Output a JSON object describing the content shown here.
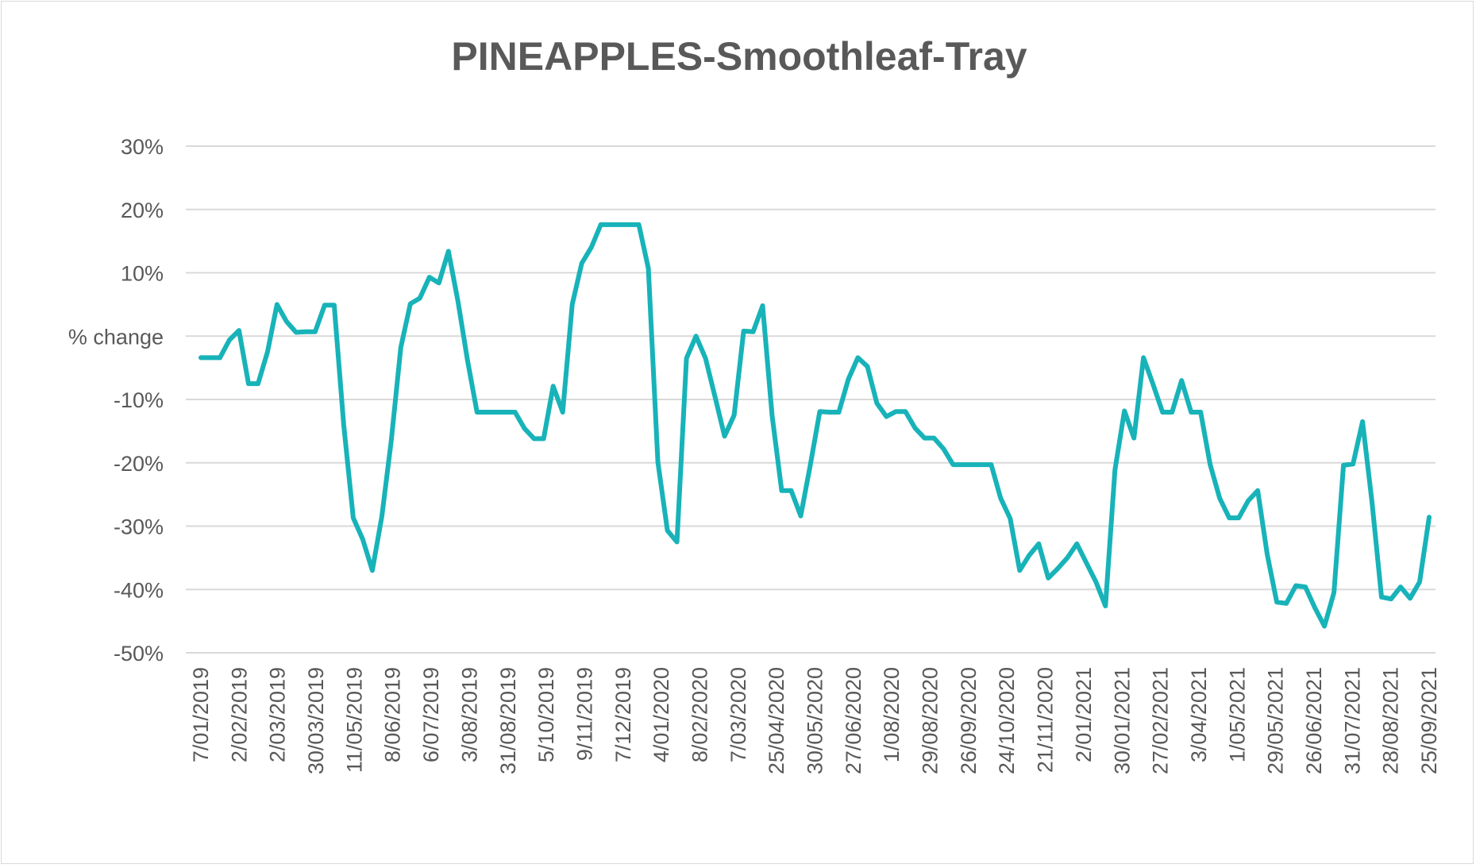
{
  "chart_data": {
    "type": "line",
    "title": "PINEAPPLES-Smoothleaf-Tray",
    "xlabel": "",
    "ylabel": "% change",
    "ylim": [
      -50,
      30
    ],
    "y_ticks": [
      "30%",
      "20%",
      "10%",
      "% change",
      "-10%",
      "-20%",
      "-30%",
      "-40%",
      "-50%"
    ],
    "y_tick_values": [
      30,
      20,
      10,
      0,
      -10,
      -20,
      -30,
      -40,
      -50
    ],
    "x_tick_labels": [
      "7/01/2019",
      "2/02/2019",
      "2/03/2019",
      "30/03/2019",
      "11/05/2019",
      "8/06/2019",
      "6/07/2019",
      "3/08/2019",
      "31/08/2019",
      "5/10/2019",
      "9/11/2019",
      "7/12/2019",
      "4/01/2020",
      "8/02/2020",
      "7/03/2020",
      "25/04/2020",
      "30/05/2020",
      "27/06/2020",
      "1/08/2020",
      "29/08/2020",
      "26/09/2020",
      "24/10/2020",
      "21/11/2020",
      "2/01/2021",
      "30/01/2021",
      "27/02/2021",
      "3/04/2021",
      "1/05/2021",
      "29/05/2021",
      "26/06/2021",
      "31/07/2021",
      "28/08/2021",
      "25/09/2021"
    ],
    "grid": true,
    "legend": "none",
    "colors": {
      "series": "#17b3b9",
      "text": "#595959",
      "grid": "#d9d9d9"
    },
    "series": [
      {
        "values": [
          -3.4,
          -3.4,
          -3.4,
          -0.6,
          0.9,
          -7.5,
          -7.5,
          -2.5,
          5.0,
          2.3,
          0.6,
          0.7,
          0.7,
          4.9,
          4.9,
          -14.0,
          -28.7,
          -32.1,
          -37.0,
          -28.5,
          -16.5,
          -1.8,
          5.1,
          6.0,
          9.3,
          8.4,
          13.4,
          5.5,
          -3.8,
          -12.0,
          -12.0,
          -12.0,
          -12.0,
          -12.0,
          -14.6,
          -16.2,
          -16.2,
          -7.9,
          -12.0,
          5.0,
          11.5,
          14.0,
          17.6,
          17.6,
          17.6,
          17.6,
          17.6,
          10.7,
          -19.9,
          -30.7,
          -32.5,
          -3.5,
          0.0,
          -3.5,
          -9.6,
          -15.8,
          -12.5,
          0.8,
          0.7,
          4.8,
          -12.6,
          -24.4,
          -24.4,
          -28.4,
          -20.4,
          -11.9,
          -12.0,
          -12.0,
          -6.8,
          -3.4,
          -4.8,
          -10.6,
          -12.7,
          -11.9,
          -11.9,
          -14.5,
          -16.1,
          -16.1,
          -17.8,
          -20.3,
          -20.3,
          -20.3,
          -20.3,
          -20.3,
          -25.6,
          -28.8,
          -37.0,
          -34.6,
          -32.8,
          -38.2,
          -36.7,
          -35.0,
          -32.8,
          -35.8,
          -38.8,
          -42.6,
          -21.1,
          -11.8,
          -16.1,
          -3.4,
          -7.6,
          -12.0,
          -12.0,
          -7.0,
          -12.0,
          -12.0,
          -20.3,
          -25.6,
          -28.7,
          -28.7,
          -26.0,
          -24.4,
          -34.5,
          -42.0,
          -42.2,
          -39.4,
          -39.6,
          -42.9,
          -45.8,
          -40.5,
          -20.4,
          -20.2,
          -13.5,
          -26.2,
          -41.2,
          -41.5,
          -39.6,
          -41.4,
          -38.8,
          -28.6
        ]
      }
    ]
  }
}
